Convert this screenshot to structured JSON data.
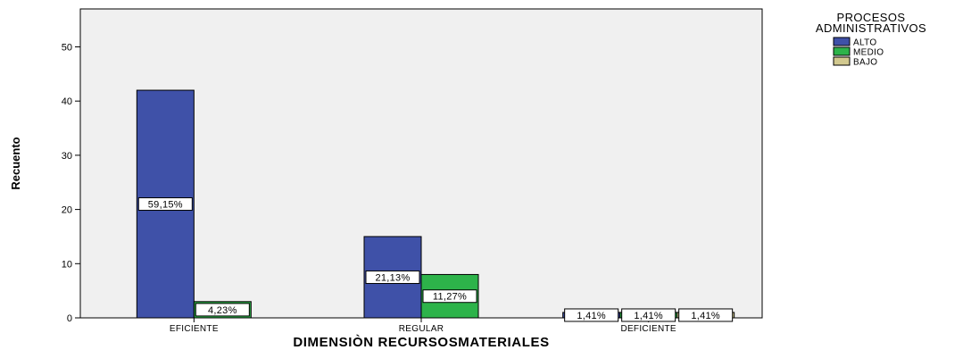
{
  "chart_data": {
    "type": "bar",
    "title": "",
    "xlabel": "DIMENSIÒN RECURSOSMATERIALES",
    "ylabel": "Recuento",
    "categories": [
      "EFICIENTE",
      "REGULAR",
      "DEFICIENTE"
    ],
    "series": [
      {
        "name": "ALTO",
        "color": "#3f51a8",
        "values": [
          42,
          15,
          1
        ],
        "labels": [
          "59,15%",
          "21,13%",
          "1,41%"
        ]
      },
      {
        "name": "MEDIO",
        "color": "#2db34a",
        "values": [
          3,
          8,
          1
        ],
        "labels": [
          "4,23%",
          "11,27%",
          "1,41%"
        ]
      },
      {
        "name": "BAJO",
        "color": "#d2c98f",
        "values": [
          0,
          0,
          1
        ],
        "labels": [
          "",
          "",
          "1,41%"
        ]
      }
    ],
    "ylim": [
      0,
      57
    ],
    "yticks": [
      0,
      10,
      20,
      30,
      40,
      50
    ],
    "grid": false,
    "legend": {
      "title_lines": [
        "PROCESOS",
        "ADMINISTRATIVOS"
      ],
      "placement": "right"
    },
    "background": "#f0f0f0"
  }
}
